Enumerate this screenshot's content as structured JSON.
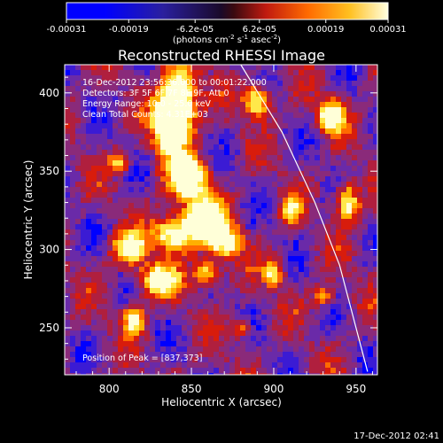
{
  "colorbar": {
    "tick_labels": [
      "-0.00031",
      "-0.00019",
      "-6.2e-05",
      "6.2e-05",
      "0.00019",
      "0.00031"
    ],
    "tick_values": [
      -0.00031,
      -0.00019,
      -6.2e-05,
      6.2e-05,
      0.00019,
      0.00031
    ],
    "range": [
      -0.00031,
      0.00031
    ],
    "units_prefix": "(photons cm",
    "units_exp1": "-2",
    "units_mid": " s",
    "units_exp2": "-1",
    "units_suffix": " asec",
    "units_exp3": "-2",
    "units_close": ")"
  },
  "info": {
    "line1": "16-Dec-2012 23:56:36.000 to 00:01:22.000",
    "line2": "Detectors: 3F 5F 6F 7F 8F 9F, Att 0",
    "line3": "Energy Range: 10.0 - 25.0 keV",
    "line4": "Clean     Total Counts: 4.31E+03",
    "peak": "Position of Peak = [837,373]"
  },
  "footer": {
    "timestamp": "17-Dec-2012 02:41"
  },
  "chart_data": {
    "type": "heatmap",
    "title": "Reconstructed RHESSI Image",
    "xlabel": "Heliocentric X (arcsec)",
    "ylabel": "Heliocentric Y (arcsec)",
    "xlim": [
      773,
      963
    ],
    "ylim": [
      220,
      418
    ],
    "x_ticks": [
      800,
      850,
      900,
      950
    ],
    "y_ticks": [
      250,
      300,
      350,
      400
    ],
    "x_tick_labels": [
      "800",
      "850",
      "900",
      "950"
    ],
    "y_tick_labels": [
      "250",
      "300",
      "350",
      "400"
    ],
    "colormap": [
      "#0000ff",
      "#3b1bd4",
      "#6a2aa8",
      "#8a2a7a",
      "#b01f3e",
      "#d81c0c",
      "#ff6a00",
      "#ffb000",
      "#ffe84a",
      "#ffffd8"
    ],
    "limb_curve": [
      [
        880,
        418
      ],
      [
        905,
        375
      ],
      [
        925,
        330
      ],
      [
        940,
        290
      ],
      [
        950,
        250
      ],
      [
        957,
        222
      ]
    ],
    "peak": [
      837,
      373
    ]
  }
}
